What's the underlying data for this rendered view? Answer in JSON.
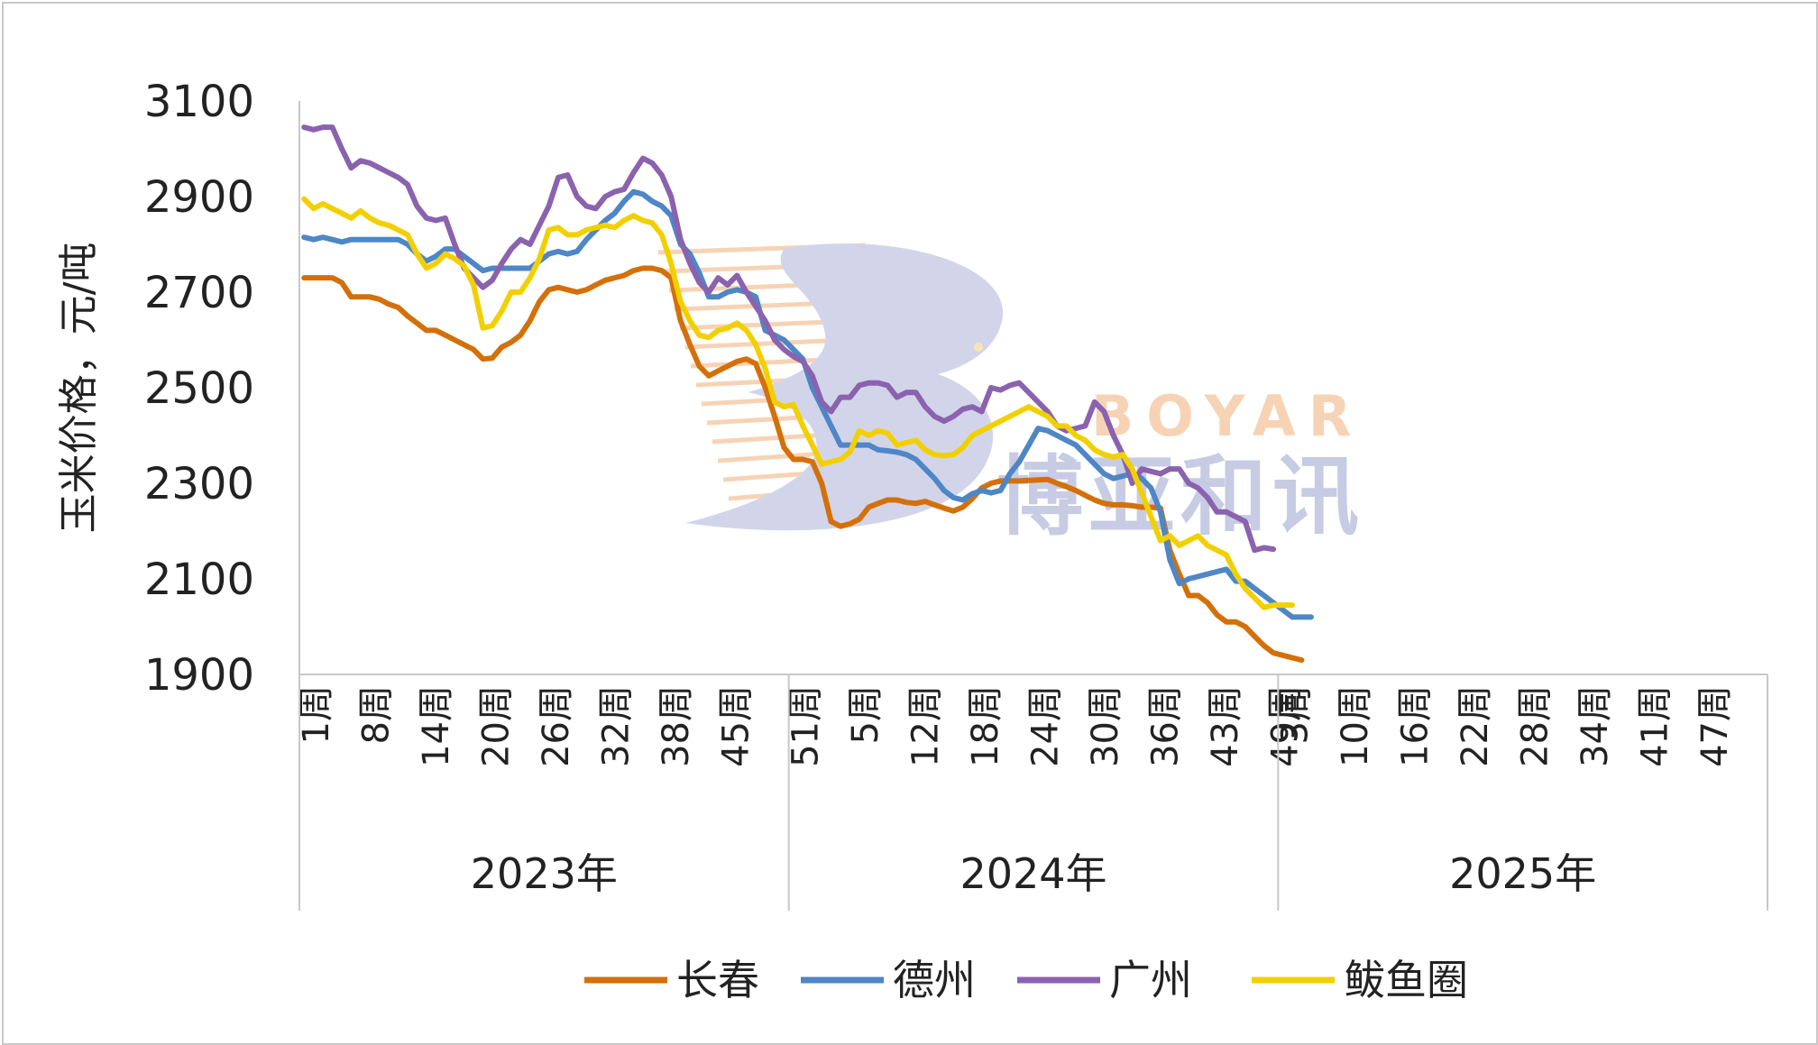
{
  "chart_data": {
    "type": "line",
    "ylabel": "玉米价格，元/吨",
    "ylim": [
      1900,
      3100
    ],
    "yticks": [
      1900,
      2100,
      2300,
      2500,
      2700,
      2900,
      3100
    ],
    "grid": false,
    "legend_position": "bottom",
    "years": [
      {
        "label": "2023年",
        "ticks": [
          "1周",
          "8周",
          "14周",
          "20周",
          "26周",
          "32周",
          "38周",
          "45周"
        ]
      },
      {
        "label": "2024年",
        "ticks": [
          "51周",
          "5周",
          "12周",
          "18周",
          "24周",
          "30周",
          "36周",
          "43周",
          "49周"
        ]
      },
      {
        "label": "2025年",
        "ticks": [
          "3周",
          "10周",
          "16周",
          "22周",
          "28周",
          "34周",
          "41周",
          "47周"
        ]
      }
    ],
    "series": [
      {
        "name": "长春",
        "color": "#D4700A",
        "values": [
          2730,
          2730,
          2730,
          2730,
          2720,
          2690,
          2690,
          2690,
          2685,
          2675,
          2668,
          2650,
          2635,
          2620,
          2620,
          2610,
          2600,
          2590,
          2580,
          2560,
          2562,
          2585,
          2595,
          2610,
          2640,
          2680,
          2705,
          2710,
          2705,
          2700,
          2705,
          2715,
          2725,
          2730,
          2735,
          2745,
          2750,
          2750,
          2745,
          2730,
          2640,
          2590,
          2545,
          2525,
          2535,
          2545,
          2555,
          2560,
          2550,
          2500,
          2440,
          2375,
          2350,
          2350,
          2345,
          2300,
          2220,
          2210,
          2215,
          2225,
          2250,
          2258,
          2265,
          2265,
          2260,
          2258,
          2262,
          2255,
          2248,
          2242,
          2250,
          2268,
          2290,
          2300,
          2305,
          2305,
          2305,
          2306,
          2307,
          2308,
          2300,
          2293,
          2285,
          2275,
          2265,
          2258,
          2255,
          2255,
          2253,
          2250,
          2250,
          2248,
          2160,
          2110,
          2065,
          2065,
          2050,
          2025,
          2010,
          2010,
          2000,
          1980,
          1960,
          1945,
          1940,
          1935,
          1930
        ]
      },
      {
        "name": "德州",
        "color": "#4E86C6",
        "values": [
          2815,
          2810,
          2815,
          2810,
          2805,
          2810,
          2810,
          2810,
          2810,
          2810,
          2810,
          2800,
          2780,
          2765,
          2775,
          2790,
          2790,
          2775,
          2760,
          2745,
          2750,
          2750,
          2750,
          2750,
          2750,
          2765,
          2780,
          2785,
          2780,
          2785,
          2810,
          2830,
          2850,
          2865,
          2890,
          2910,
          2905,
          2890,
          2880,
          2860,
          2800,
          2780,
          2740,
          2690,
          2690,
          2700,
          2705,
          2700,
          2690,
          2620,
          2610,
          2600,
          2580,
          2560,
          2500,
          2460,
          2420,
          2380,
          2380,
          2380,
          2380,
          2370,
          2368,
          2365,
          2360,
          2350,
          2330,
          2310,
          2285,
          2270,
          2265,
          2278,
          2285,
          2280,
          2285,
          2320,
          2345,
          2380,
          2415,
          2410,
          2400,
          2390,
          2380,
          2360,
          2340,
          2320,
          2310,
          2315,
          2320,
          2310,
          2290,
          2240,
          2140,
          2090,
          2100,
          2105,
          2110,
          2115,
          2120,
          2095,
          2095,
          2080,
          2065,
          2050,
          2035,
          2020,
          2020,
          2020
        ]
      },
      {
        "name": "广州",
        "color": "#8A62AE",
        "values": [
          3045,
          3040,
          3045,
          3045,
          3000,
          2960,
          2975,
          2970,
          2960,
          2950,
          2940,
          2925,
          2880,
          2855,
          2850,
          2855,
          2800,
          2750,
          2730,
          2710,
          2725,
          2760,
          2790,
          2810,
          2800,
          2840,
          2880,
          2940,
          2945,
          2900,
          2880,
          2875,
          2900,
          2910,
          2915,
          2950,
          2980,
          2970,
          2945,
          2900,
          2810,
          2760,
          2720,
          2700,
          2730,
          2715,
          2735,
          2700,
          2670,
          2640,
          2600,
          2580,
          2565,
          2555,
          2525,
          2470,
          2450,
          2480,
          2480,
          2505,
          2510,
          2510,
          2505,
          2480,
          2490,
          2490,
          2460,
          2440,
          2430,
          2440,
          2455,
          2460,
          2450,
          2500,
          2495,
          2505,
          2510,
          2490,
          2470,
          2450,
          2420,
          2410,
          2415,
          2420,
          2470,
          2450,
          2400,
          2360,
          2300,
          2330,
          2325,
          2320,
          2330,
          2330,
          2300,
          2290,
          2270,
          2240,
          2240,
          2230,
          2220,
          2160,
          2165,
          2162
        ]
      },
      {
        "name": "鲅鱼圈",
        "color": "#F2D000",
        "values": [
          2895,
          2875,
          2885,
          2875,
          2865,
          2855,
          2870,
          2855,
          2845,
          2840,
          2830,
          2820,
          2780,
          2750,
          2760,
          2780,
          2770,
          2755,
          2715,
          2625,
          2630,
          2660,
          2700,
          2700,
          2730,
          2770,
          2830,
          2835,
          2820,
          2820,
          2830,
          2835,
          2840,
          2835,
          2850,
          2860,
          2850,
          2845,
          2820,
          2760,
          2680,
          2640,
          2610,
          2605,
          2620,
          2625,
          2635,
          2620,
          2590,
          2540,
          2470,
          2460,
          2465,
          2420,
          2380,
          2340,
          2345,
          2350,
          2365,
          2410,
          2400,
          2410,
          2405,
          2380,
          2385,
          2390,
          2370,
          2360,
          2358,
          2360,
          2375,
          2400,
          2410,
          2420,
          2430,
          2440,
          2450,
          2460,
          2450,
          2440,
          2420,
          2420,
          2400,
          2390,
          2370,
          2360,
          2355,
          2360,
          2330,
          2280,
          2230,
          2180,
          2190,
          2170,
          2180,
          2190,
          2170,
          2160,
          2150,
          2110,
          2080,
          2060,
          2040,
          2045,
          2045,
          2045
        ]
      }
    ],
    "total_weeks": 156
  },
  "watermark": {
    "latin": "BOYAR",
    "cjk": "博亚和讯",
    "colors": {
      "blue": "#9AA3CE",
      "orange": "#F2B07A"
    }
  }
}
